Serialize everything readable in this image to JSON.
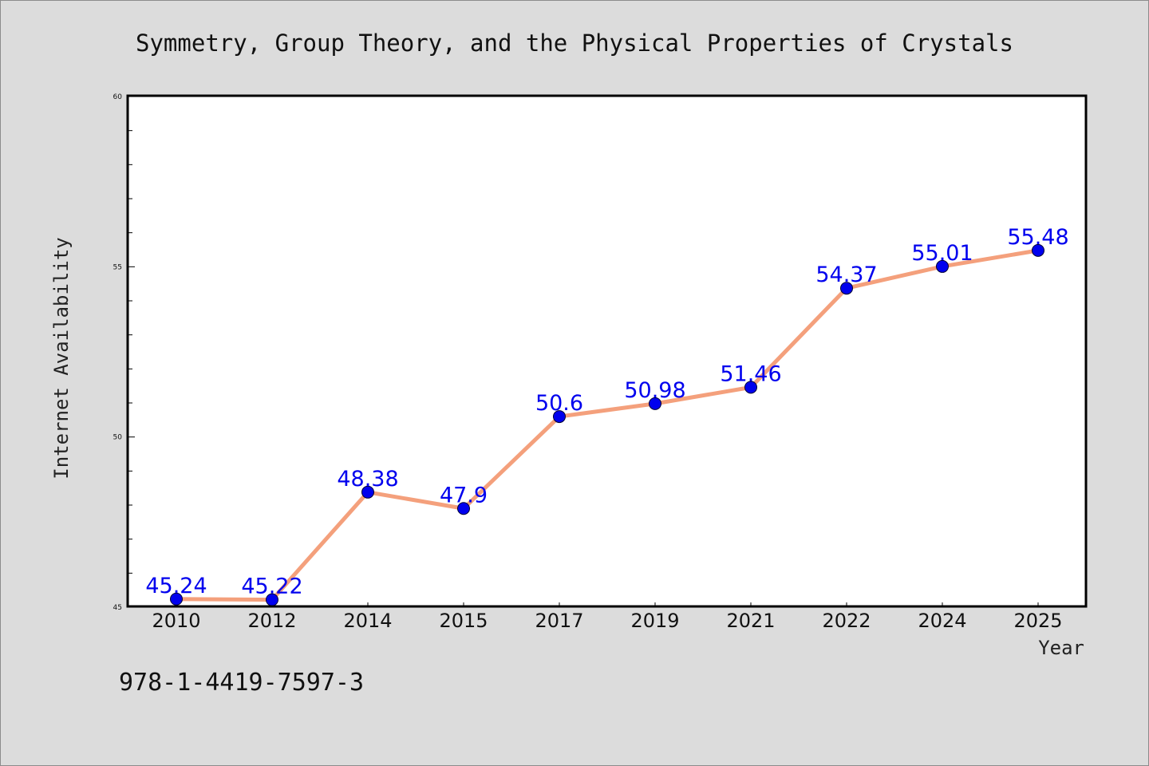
{
  "colors": {
    "background": "#dcdcdc",
    "plot_background": "#ffffff",
    "line": "#f4a07c",
    "marker": "#0000ee",
    "label": "#0000ee",
    "frame": "#000000"
  },
  "footer": {
    "isbn": "978-1-4419-7597-3"
  },
  "chart_data": {
    "type": "line",
    "title": "Symmetry, Group Theory, and the Physical Properties of Crystals",
    "xlabel": "Year",
    "ylabel": "Internet Availability",
    "categories": [
      "2010",
      "2012",
      "2014",
      "2015",
      "2017",
      "2019",
      "2021",
      "2022",
      "2024",
      "2025"
    ],
    "series": [
      {
        "values": [
          45.24,
          45.22,
          48.38,
          47.9,
          50.6,
          50.98,
          51.46,
          54.37,
          55.01,
          55.48
        ],
        "labels": [
          "45.24",
          "45.22",
          "48.38",
          "47.9",
          "50.6",
          "50.98",
          "51.46",
          "54.37",
          "55.01",
          "55.48"
        ]
      }
    ],
    "ylim": [
      45,
      60
    ],
    "yticks": [
      "45",
      "50",
      "55",
      "60"
    ],
    "y_minor_step": 1,
    "grid": false,
    "legend": "none"
  }
}
